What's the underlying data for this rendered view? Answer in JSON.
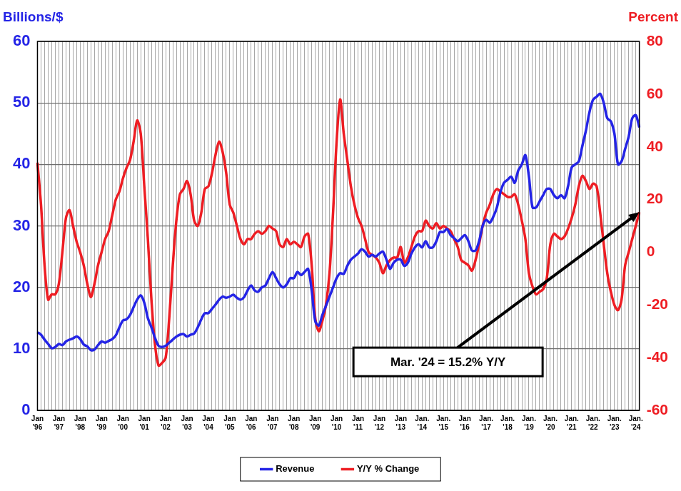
{
  "chart_data": {
    "type": "line",
    "y_label": "Billions/$",
    "y2_label": "Percent",
    "annotation": "Mar. '24 = 15.2% Y/Y",
    "categories": [
      "Jan '96",
      null,
      null,
      null,
      null,
      null,
      "Jan '97",
      null,
      null,
      null,
      null,
      null,
      "Jan '98",
      null,
      null,
      null,
      null,
      null,
      "Jan '99",
      null,
      null,
      null,
      null,
      null,
      "Jan '00",
      null,
      null,
      null,
      null,
      null,
      "Jan '01",
      null,
      null,
      null,
      null,
      null,
      "Jan '02",
      null,
      null,
      null,
      null,
      null,
      "Jan '03",
      null,
      null,
      null,
      null,
      null,
      "Jan '04",
      null,
      null,
      null,
      null,
      null,
      "Jan '05",
      null,
      null,
      null,
      null,
      null,
      "Jan '06",
      null,
      null,
      null,
      null,
      null,
      "Jan '07",
      null,
      null,
      null,
      null,
      null,
      "Jan '08",
      null,
      null,
      null,
      null,
      null,
      "Jan '09",
      null,
      null,
      null,
      null,
      null,
      "Jan '10",
      null,
      null,
      null,
      null,
      null,
      "Jan '11",
      null,
      null,
      null,
      null,
      null,
      "Jan '12",
      null,
      null,
      null,
      null,
      null,
      "Jan '13",
      null,
      null,
      null,
      null,
      null,
      "Jan. '14",
      null,
      null,
      null,
      null,
      null,
      "Jan. '15",
      null,
      null,
      null,
      null,
      null,
      "Jan '16",
      null,
      null,
      null,
      null,
      null,
      "Jan. '17",
      null,
      null,
      null,
      null,
      null,
      "Jan. '18",
      null,
      null,
      null,
      null,
      null,
      "Jan. '19",
      null,
      null,
      null,
      null,
      null,
      "Jan. '20",
      null,
      null,
      null,
      null,
      null,
      "Jan. '21",
      null,
      null,
      null,
      null,
      null,
      "Jan. '22",
      null,
      null,
      null,
      null,
      null,
      "Jan. '23",
      null,
      null,
      null,
      null,
      null,
      "Jan. '24",
      null
    ],
    "series": [
      {
        "name": "Revenue",
        "color": "#2424e6",
        "values": [
          12.7,
          12.3,
          11.5,
          10.8,
          10.1,
          10.3,
          10.8,
          10.6,
          11.2,
          11.5,
          11.7,
          12.0,
          11.6,
          10.7,
          10.4,
          9.8,
          9.9,
          10.6,
          11.2,
          11.0,
          11.3,
          11.6,
          12.2,
          13.5,
          14.6,
          14.8,
          15.5,
          16.8,
          18.0,
          18.7,
          17.5,
          15.0,
          13.5,
          11.8,
          10.5,
          10.3,
          10.5,
          11.0,
          11.5,
          12.0,
          12.3,
          12.4,
          12.0,
          12.3,
          12.5,
          13.5,
          14.8,
          15.8,
          15.8,
          16.5,
          17.2,
          18.0,
          18.5,
          18.3,
          18.5,
          18.8,
          18.3,
          18.0,
          18.4,
          19.5,
          20.3,
          19.5,
          19.3,
          20.0,
          20.3,
          21.5,
          22.5,
          21.5,
          20.5,
          20.0,
          20.5,
          21.5,
          21.5,
          22.5,
          22.0,
          22.5,
          23.0,
          19.5,
          14.5,
          13.8,
          15.5,
          17.0,
          18.5,
          20.0,
          21.5,
          22.3,
          22.2,
          23.5,
          24.5,
          25.0,
          25.5,
          26.2,
          25.8,
          25.0,
          25.3,
          25.0,
          25.5,
          25.8,
          24.5,
          23.0,
          24.0,
          24.5,
          24.5,
          23.5,
          24.0,
          25.5,
          26.5,
          27.0,
          26.5,
          27.5,
          26.5,
          26.5,
          27.5,
          29.0,
          29.0,
          29.5,
          28.5,
          28.0,
          27.5,
          28.0,
          28.5,
          27.5,
          26.0,
          26.0,
          27.5,
          30.0,
          31.0,
          30.5,
          31.5,
          33.0,
          35.5,
          37.0,
          37.5,
          38.0,
          37.0,
          39.0,
          40.0,
          41.5,
          38.0,
          33.0,
          33.0,
          34.0,
          35.0,
          36.0,
          36.0,
          35.0,
          34.5,
          35.0,
          34.5,
          36.5,
          39.5,
          40.0,
          40.5,
          43.0,
          45.5,
          48.5,
          50.5,
          51.0,
          51.5,
          50.0,
          47.5,
          47.0,
          45.0,
          40.0,
          40.5,
          42.5,
          44.5,
          47.5,
          48.0,
          46.0
        ]
      },
      {
        "name": "Y/Y % Change",
        "color": "#ee1d23",
        "axis": "y2",
        "values": [
          34,
          18,
          -5,
          -18,
          -16,
          -16,
          -12,
          0,
          13,
          16,
          10,
          4,
          0,
          -5,
          -12,
          -17,
          -12,
          -5,
          0,
          5,
          8,
          14,
          20,
          23,
          28,
          32,
          35,
          42,
          50,
          45,
          25,
          5,
          -18,
          -35,
          -43,
          -42,
          -40,
          -25,
          -5,
          12,
          22,
          24,
          27,
          22,
          12,
          10,
          15,
          24,
          25,
          30,
          37,
          42,
          38,
          30,
          18,
          15,
          10,
          5,
          3,
          5,
          5,
          7,
          8,
          7,
          8,
          10,
          9,
          8,
          3,
          2,
          5,
          3,
          4,
          3,
          2,
          6,
          7,
          -5,
          -25,
          -30,
          -26,
          -20,
          -8,
          15,
          42,
          58,
          45,
          35,
          25,
          18,
          13,
          10,
          5,
          0,
          -1,
          -2,
          -4,
          -8,
          -5,
          -3,
          -2,
          -2,
          2,
          -4,
          -2,
          2,
          6,
          8,
          8,
          12,
          10,
          9,
          11,
          9,
          10,
          9,
          8,
          5,
          2,
          -3,
          -4,
          -5,
          -7,
          -3,
          3,
          10,
          15,
          18,
          22,
          24,
          23,
          22,
          21,
          21,
          22,
          18,
          12,
          5,
          -8,
          -13,
          -16,
          -15,
          -14,
          -10,
          3,
          7,
          6,
          5,
          6,
          9,
          13,
          18,
          25,
          29,
          27,
          24,
          26,
          25,
          15,
          3,
          -8,
          -15,
          -20,
          -22,
          -18,
          -5,
          0,
          5,
          10,
          15.2
        ]
      }
    ],
    "ylim": [
      0,
      60
    ],
    "yticks": [
      0,
      10,
      20,
      30,
      40,
      50,
      60
    ],
    "y2lim": [
      -60,
      80
    ],
    "y2ticks": [
      -60,
      -40,
      -20,
      0,
      20,
      40,
      60,
      80
    ],
    "grid": true,
    "legend": "bottom"
  }
}
